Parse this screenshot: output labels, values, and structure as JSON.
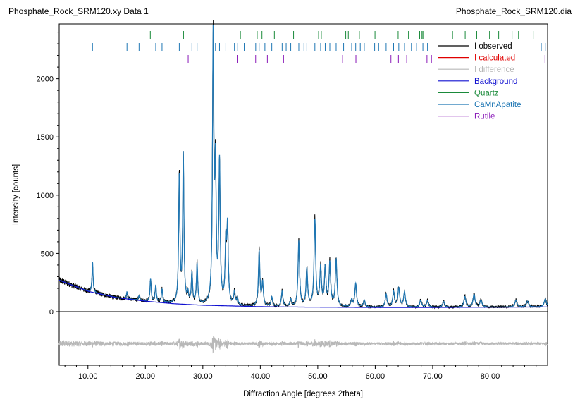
{
  "header": {
    "left_title": "Phosphate_Rock_SRM120.xy Data 1",
    "right_title": "Phosphate_Rock_SRM120.dia"
  },
  "chart_data": {
    "type": "line",
    "xlabel": "Diffraction Angle [degrees 2theta]",
    "ylabel": "Intensity [counts]",
    "xlim": [
      5,
      90
    ],
    "ylim": [
      -460,
      2470
    ],
    "x_ticks": [
      {
        "value": 10,
        "label": "10.00"
      },
      {
        "value": 20,
        "label": "20.00"
      },
      {
        "value": 30,
        "label": "30.00"
      },
      {
        "value": 40,
        "label": "40.00"
      },
      {
        "value": 50,
        "label": "50.00"
      },
      {
        "value": 60,
        "label": "60.00"
      },
      {
        "value": 70,
        "label": "70.00"
      },
      {
        "value": 80,
        "label": "80.00"
      }
    ],
    "y_ticks": [
      {
        "value": 0,
        "label": "0"
      },
      {
        "value": 500,
        "label": "500"
      },
      {
        "value": 1000,
        "label": "1000"
      },
      {
        "value": 1500,
        "label": "1500"
      },
      {
        "value": 2000,
        "label": "2000"
      }
    ],
    "difference_offset": -275,
    "legend_position": "top-right",
    "legend": [
      {
        "name": "I observed",
        "color": "#000000"
      },
      {
        "name": "I calculated",
        "color": "#e00000"
      },
      {
        "name": "I difference",
        "color": "#b8b8b8"
      },
      {
        "name": "Background",
        "color": "#1010d0"
      },
      {
        "name": "Quartz",
        "color": "#1a8a3a"
      },
      {
        "name": "CaMnApatite",
        "color": "#1f77b4"
      },
      {
        "name": "Rutile",
        "color": "#8a1ab8"
      }
    ],
    "background": {
      "x": [
        5,
        10,
        15,
        20,
        25,
        30,
        40,
        50,
        60,
        70,
        80,
        90
      ],
      "y": [
        270,
        175,
        120,
        90,
        68,
        55,
        43,
        38,
        36,
        36,
        38,
        40
      ]
    },
    "peaks": [
      {
        "x": 10.8,
        "h": 260
      },
      {
        "x": 16.8,
        "h": 60
      },
      {
        "x": 18.9,
        "h": 40
      },
      {
        "x": 20.9,
        "h": 190
      },
      {
        "x": 21.8,
        "h": 140
      },
      {
        "x": 22.9,
        "h": 110
      },
      {
        "x": 25.9,
        "h": 1080
      },
      {
        "x": 26.6,
        "h": 1270
      },
      {
        "x": 27.4,
        "h": 80
      },
      {
        "x": 28.1,
        "h": 260
      },
      {
        "x": 29.0,
        "h": 340
      },
      {
        "x": 31.8,
        "h": 2280
      },
      {
        "x": 32.2,
        "h": 1100
      },
      {
        "x": 32.9,
        "h": 1200
      },
      {
        "x": 34.0,
        "h": 500
      },
      {
        "x": 34.3,
        "h": 640
      },
      {
        "x": 35.5,
        "h": 110
      },
      {
        "x": 36.0,
        "h": 60
      },
      {
        "x": 39.8,
        "h": 470
      },
      {
        "x": 40.4,
        "h": 200
      },
      {
        "x": 42.0,
        "h": 80
      },
      {
        "x": 43.8,
        "h": 130
      },
      {
        "x": 45.3,
        "h": 60
      },
      {
        "x": 46.7,
        "h": 560
      },
      {
        "x": 48.1,
        "h": 320
      },
      {
        "x": 49.5,
        "h": 740
      },
      {
        "x": 50.5,
        "h": 330
      },
      {
        "x": 51.3,
        "h": 330
      },
      {
        "x": 52.1,
        "h": 370
      },
      {
        "x": 53.2,
        "h": 400
      },
      {
        "x": 55.9,
        "h": 60
      },
      {
        "x": 56.6,
        "h": 200
      },
      {
        "x": 58.1,
        "h": 60
      },
      {
        "x": 61.9,
        "h": 110
      },
      {
        "x": 63.2,
        "h": 130
      },
      {
        "x": 64.1,
        "h": 160
      },
      {
        "x": 65.1,
        "h": 130
      },
      {
        "x": 67.9,
        "h": 60
      },
      {
        "x": 69.1,
        "h": 60
      },
      {
        "x": 71.9,
        "h": 50
      },
      {
        "x": 75.6,
        "h": 90
      },
      {
        "x": 77.2,
        "h": 110
      },
      {
        "x": 78.4,
        "h": 60
      },
      {
        "x": 84.5,
        "h": 60
      },
      {
        "x": 86.5,
        "h": 50
      },
      {
        "x": 89.6,
        "h": 70
      }
    ],
    "reflection_markers": {
      "Quartz": [
        20.86,
        26.64,
        36.54,
        39.46,
        40.29,
        42.45,
        45.79,
        50.14,
        50.62,
        54.87,
        55.32,
        57.24,
        59.96,
        63.99,
        65.79,
        67.74,
        68.14,
        68.31,
        73.46,
        75.66,
        77.67,
        79.9,
        81.49,
        83.82,
        84.94,
        87.5
      ],
      "CaMnApatite": [
        10.8,
        16.8,
        18.9,
        21.8,
        22.9,
        25.9,
        28.1,
        29.0,
        31.8,
        32.2,
        32.9,
        34.0,
        35.5,
        36.0,
        37.2,
        39.2,
        39.8,
        40.8,
        42.0,
        43.8,
        44.5,
        45.3,
        46.7,
        47.6,
        48.1,
        49.5,
        50.5,
        51.3,
        52.1,
        53.2,
        54.5,
        55.9,
        56.6,
        57.4,
        58.1,
        59.9,
        60.6,
        61.9,
        63.2,
        64.1,
        65.1,
        66.3,
        67.2,
        68.3,
        69.1,
        87.6,
        88.2,
        88.9,
        89.6
      ],
      "Rutile": [
        27.45,
        36.09,
        39.19,
        41.23,
        44.05,
        54.32,
        56.64,
        62.74,
        64.04,
        65.48,
        69.01,
        69.79,
        89.55
      ]
    }
  }
}
